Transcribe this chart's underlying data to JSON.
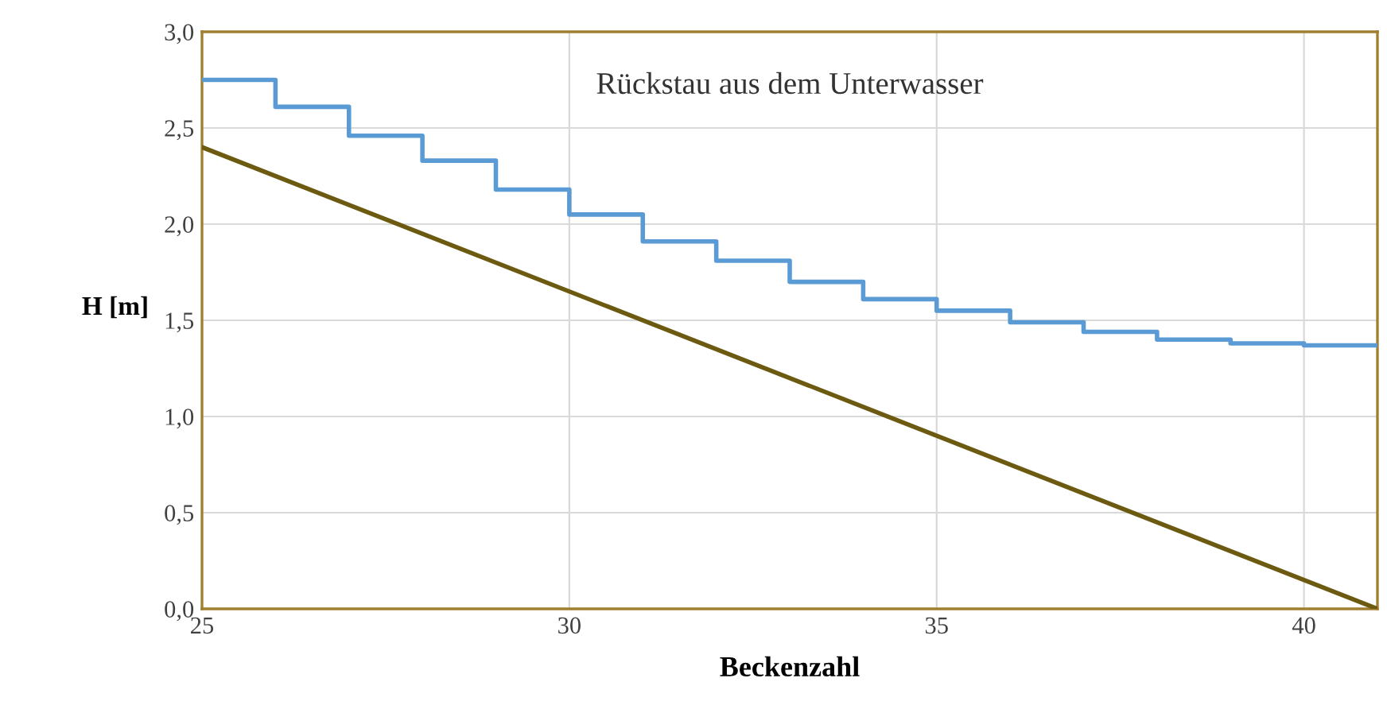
{
  "chart_data": {
    "type": "line",
    "xlabel": "Beckenzahl",
    "ylabel": "H [m]",
    "annotations": [
      "Rückstau aus dem Unterwasser"
    ],
    "series": [
      {
        "type": "step",
        "color": "#5b9bd5",
        "x": [
          25,
          26,
          27,
          28,
          29,
          30,
          31,
          32,
          33,
          34,
          35,
          36,
          37,
          38,
          39,
          40,
          41
        ],
        "values": [
          2.75,
          2.61,
          2.46,
          2.33,
          2.18,
          2.05,
          1.91,
          1.81,
          1.7,
          1.61,
          1.55,
          1.49,
          1.44,
          1.4,
          1.38,
          1.37,
          1.37
        ]
      },
      {
        "color": "#6b5a10",
        "x": [
          25,
          41
        ],
        "values": [
          2.4,
          0
        ]
      }
    ],
    "xlim": [
      25,
      41
    ],
    "xticks": [
      25,
      30,
      35,
      40
    ],
    "ylim": [
      0,
      3
    ],
    "yticks": [
      {
        "value": 0,
        "label": "0,0"
      },
      {
        "value": 0.5,
        "label": "0,5"
      },
      {
        "value": 1,
        "label": "1,0"
      },
      {
        "value": 1.5,
        "label": "1,5"
      },
      {
        "value": 2,
        "label": "2,0"
      },
      {
        "value": 2.5,
        "label": "2,5"
      },
      {
        "value": 3,
        "label": "3,0"
      }
    ],
    "grid": true,
    "legend": false,
    "marker": "none",
    "line_style": "solid"
  }
}
